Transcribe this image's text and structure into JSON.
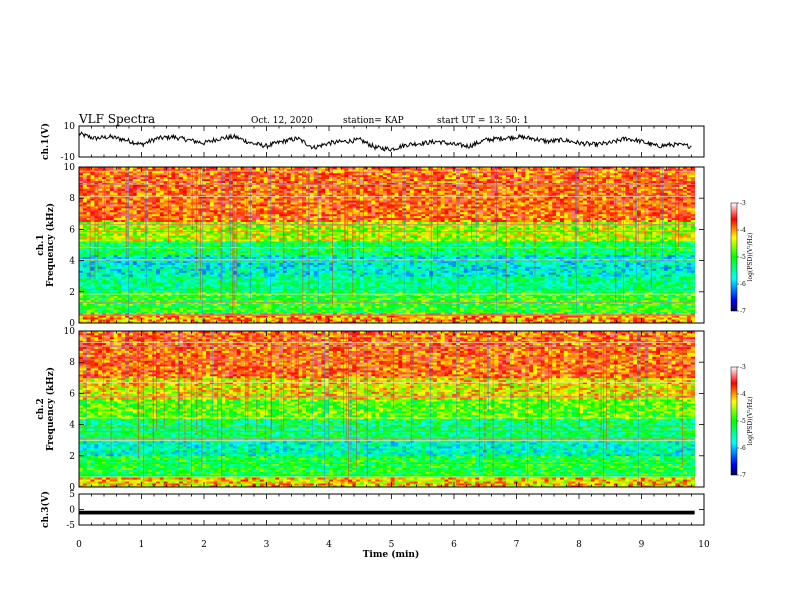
{
  "header": {
    "title": "VLF Spectra",
    "date": "Oct. 12, 2020",
    "station": "station= KAP",
    "start_ut": "start  UT =   13: 50: 1"
  },
  "chart_data": [
    {
      "type": "line",
      "panel": "ch1-waveform",
      "ylabel": "ch.1(V)",
      "ylim": [
        -10,
        10
      ],
      "yticks": [
        "10",
        "-10"
      ],
      "color": "#000000",
      "x": [
        0,
        0.25,
        0.5,
        0.75,
        1,
        1.25,
        1.5,
        1.75,
        2,
        2.25,
        2.5,
        2.75,
        3,
        3.25,
        3.5,
        3.75,
        4,
        4.25,
        4.5,
        4.75,
        5,
        5.25,
        5.5,
        5.75,
        6,
        6.25,
        6.5,
        6.75,
        7,
        7.25,
        7.5,
        7.75,
        8,
        8.25,
        8.5,
        8.75,
        9,
        9.25,
        9.5,
        9.8
      ],
      "y": [
        5,
        2,
        3,
        1,
        -2,
        2,
        3,
        1,
        -1,
        2,
        3,
        -1,
        -3,
        0,
        2,
        -4,
        -1,
        0,
        1,
        -4,
        -5,
        -2,
        -1,
        0,
        -2,
        -3,
        1,
        2,
        3,
        2,
        0,
        1,
        -1,
        -2,
        -1,
        2,
        0,
        -3,
        -2,
        -3
      ]
    },
    {
      "type": "heatmap",
      "panel": "ch1-spectrogram",
      "ylabel": "ch.1\nFrequency (kHz)",
      "ylim": [
        0,
        10
      ],
      "yticks": [
        "0",
        "2",
        "4",
        "6",
        "8",
        "10"
      ],
      "xlim": [
        0,
        9.85
      ],
      "z_by_frequency_kHz": [
        {
          "f": [
            0,
            0.6
          ],
          "log_psd": -4.0
        },
        {
          "f": [
            0.6,
            2
          ],
          "log_psd": -5.0
        },
        {
          "f": [
            2,
            3
          ],
          "log_psd": -5.4
        },
        {
          "f": [
            3,
            4.4
          ],
          "log_psd": -5.7
        },
        {
          "f": [
            4.4,
            5.2
          ],
          "log_psd": -5.2
        },
        {
          "f": [
            5.2,
            6.5
          ],
          "log_psd": -4.5
        },
        {
          "f": [
            6.5,
            10
          ],
          "log_psd": -3.8
        }
      ],
      "colorbar": {
        "label": "log(PSD)(V²/Hz)",
        "range": [
          -7,
          -3
        ],
        "ticks": [
          "-3",
          "-4",
          "-5",
          "-6",
          "-7"
        ]
      }
    },
    {
      "type": "heatmap",
      "panel": "ch2-spectrogram",
      "ylabel": "ch.2\nFrequency (kHz)",
      "ylim": [
        0,
        10
      ],
      "yticks": [
        "0",
        "2",
        "4",
        "6",
        "8",
        "10"
      ],
      "xlim": [
        0,
        9.85
      ],
      "z_by_frequency_kHz": [
        {
          "f": [
            0,
            0.6
          ],
          "log_psd": -4.2
        },
        {
          "f": [
            0.6,
            2
          ],
          "log_psd": -5.1
        },
        {
          "f": [
            2,
            3
          ],
          "log_psd": -5.6
        },
        {
          "f": [
            3,
            4.4
          ],
          "log_psd": -5.3
        },
        {
          "f": [
            4.4,
            5.6
          ],
          "log_psd": -4.8
        },
        {
          "f": [
            5.6,
            7
          ],
          "log_psd": -4.3
        },
        {
          "f": [
            7,
            10
          ],
          "log_psd": -3.8
        }
      ],
      "colorbar": {
        "label": "log(PSD)(V²/Hz)",
        "range": [
          -7,
          -3
        ],
        "ticks": [
          "-3",
          "-4",
          "-5",
          "-6",
          "-7"
        ]
      }
    },
    {
      "type": "line",
      "panel": "ch3-waveform",
      "ylabel": "ch.3(V)",
      "ylim": [
        -5,
        5
      ],
      "yticks": [
        "5",
        "0",
        "-5"
      ],
      "color": "#000000",
      "x": [
        0,
        9.85
      ],
      "y": [
        -1,
        -1
      ],
      "band": [
        -1.6,
        -0.4
      ]
    }
  ],
  "x_axis": {
    "xlabel": "Time (min)",
    "xlim": [
      0,
      10
    ],
    "ticks": [
      "0",
      "1",
      "2",
      "3",
      "4",
      "5",
      "6",
      "7",
      "8",
      "9",
      "10"
    ]
  }
}
